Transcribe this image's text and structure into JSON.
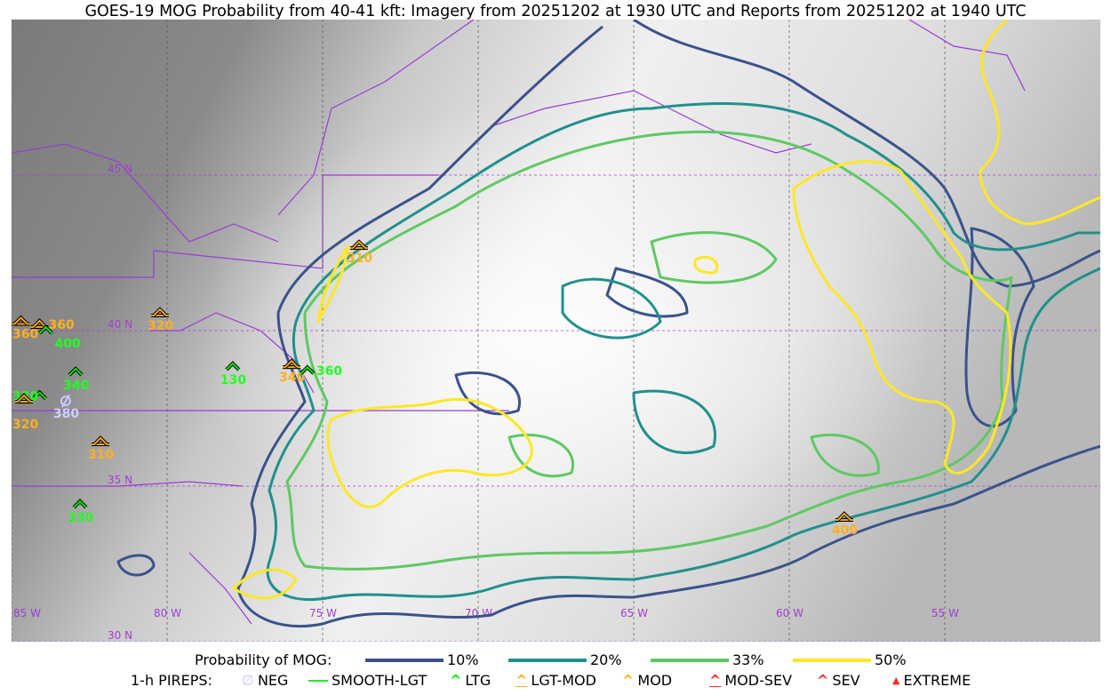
{
  "title": "GOES-19 MOG Probability from 40-41 kft: Imagery from 20251202 at 1930 UTC and Reports from 20251202 at 1940 UTC",
  "map": {
    "lat_range": [
      30,
      50
    ],
    "lon_range": [
      -85,
      -50
    ],
    "lat_labels": [
      "45 N",
      "40 N",
      "35 N",
      "30 N"
    ],
    "lon_labels": [
      "85 W",
      "80 W",
      "75 W",
      "70 W",
      "65 W",
      "60 W",
      "55 W"
    ],
    "grid_color": "#a040d0",
    "border_color": "#9a3ad8"
  },
  "legend": {
    "prob_title": "Probability of MOG:",
    "levels": [
      {
        "label": "10%",
        "color": "#3b528b"
      },
      {
        "label": "20%",
        "color": "#21908c"
      },
      {
        "label": "33%",
        "color": "#5ec962"
      },
      {
        "label": "50%",
        "color": "#fde725"
      }
    ],
    "pirep_title": "1-h PIREPS:",
    "pireps": [
      {
        "label": "NEG",
        "color": "#c8c8ff",
        "icon": "neg-slashed-circle-icon"
      },
      {
        "label": "SMOOTH-LGT",
        "color": "#22ee22",
        "icon": "line-icon"
      },
      {
        "label": "LTG",
        "color": "#00ee00",
        "icon": "caret-icon"
      },
      {
        "label": "LGT-MOD",
        "color": "#ffb020",
        "icon": "caret-bar-icon"
      },
      {
        "label": "MOD",
        "color": "#ffb020",
        "icon": "caret-icon"
      },
      {
        "label": "MOD-SEV",
        "color": "#ff2a2a",
        "icon": "double-caret-bar-icon"
      },
      {
        "label": "SEV",
        "color": "#ff2a2a",
        "icon": "double-caret-icon"
      },
      {
        "label": "EXTREME",
        "color": "#ff2a2a",
        "icon": "filled-triangle-icon"
      }
    ]
  },
  "reports": [
    {
      "alt": "320",
      "type": "MOD",
      "lat": 40.57,
      "lon": -80.23
    },
    {
      "alt": "310",
      "type": "MOD",
      "lat": 42.74,
      "lon": -73.83
    },
    {
      "alt": "130",
      "type": "LTG",
      "lat": 38.83,
      "lon": -77.89
    },
    {
      "alt": "340",
      "type": "MOD",
      "lat": 38.91,
      "lon": -76.0
    },
    {
      "alt": "360",
      "type": "LTG",
      "lat": 38.71,
      "lon": -75.49
    },
    {
      "alt": "310",
      "type": "MOD",
      "lat": 36.43,
      "lon": -82.14
    },
    {
      "alt": "330",
      "type": "LTG",
      "lat": 34.4,
      "lon": -82.8
    },
    {
      "alt": "400",
      "type": "MOD",
      "lat": 34.0,
      "lon": -58.23
    },
    {
      "alt": "380",
      "type": "NEG",
      "lat": 37.74,
      "lon": -83.26
    },
    {
      "alt": "340",
      "type": "LTG",
      "lat": 38.66,
      "lon": -82.94
    },
    {
      "alt": "320",
      "type": "LTG",
      "lat": 37.9,
      "lon": -84.1
    },
    {
      "alt": "320",
      "type": "LGT-MOD",
      "lat": 37.8,
      "lon": -84.6
    },
    {
      "alt": "360",
      "type": "LGT-MOD",
      "lat": 40.3,
      "lon": -84.7
    },
    {
      "alt": "360",
      "type": "LGT-MOD",
      "lat": 40.2,
      "lon": -84.1
    },
    {
      "alt": "400",
      "type": "LTG",
      "lat": 40.0,
      "lon": -83.9
    }
  ]
}
